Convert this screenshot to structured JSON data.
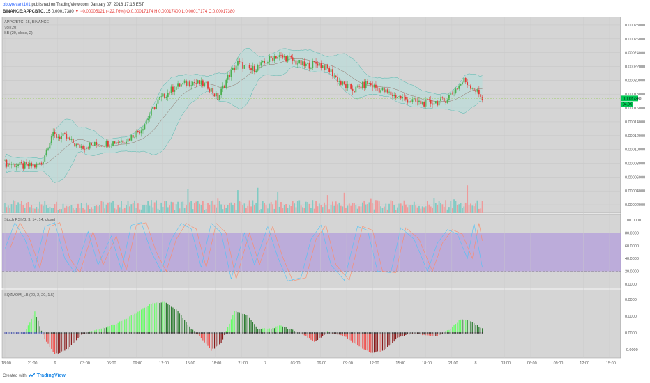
{
  "header": {
    "username": "bboyrevant101",
    "published_text": "published on TradingView.com, January 07, 2018 17:15 EST",
    "symbol": "BINANCE:APPCBTC, 15",
    "price": "0.00017380",
    "change": "−0.00005121 (−22.76%)",
    "ohlc": "O:0.00017174 H:0.00017400 L:0.00017174 C:0.00017380"
  },
  "chart_data": {
    "type": "candlestick",
    "pane_labels": [
      "APPC/BTC, 15, BINANCE",
      "Vol (20)",
      "BB (20, close, 2)",
      "Stoch RSI (3, 3, 14, 14, close)",
      "SQZMOM_LB (20, 2, 20, 1.5)"
    ],
    "main_axis": [
      "0.00028000",
      "0.00026000",
      "0.00024000",
      "0.00022000",
      "0.00020000",
      "0.00018000",
      "0.00016000",
      "0.00014000",
      "0.00012000",
      "0.00010000",
      "0.00008000",
      "0.00006000",
      "0.00004000",
      "0.00002000"
    ],
    "price_label": "0.00017380",
    "volume_label": "94.0K",
    "stoch_axis": [
      "100.0000",
      "80.0000",
      "60.0000",
      "40.0000",
      "20.0000",
      "0.0000"
    ],
    "sqz_axis": [
      "0.0000",
      "0.0000",
      "0.0000",
      "-0.0000"
    ],
    "x_ticks": [
      "18:00",
      "21:00",
      "6",
      "03:00",
      "06:00",
      "09:00",
      "12:00",
      "15:00",
      "18:00",
      "21:00",
      "7",
      "03:00",
      "06:00",
      "09:00",
      "12:00",
      "15:00",
      "18:00",
      "21:00",
      "8",
      "03:00",
      "06:00",
      "09:00",
      "12:00",
      "15:00"
    ],
    "price_anchors": [
      [
        0,
        8e-05
      ],
      [
        12,
        7.6e-05
      ],
      [
        18,
        7.6e-05
      ],
      [
        22,
        8e-05
      ],
      [
        28,
        0.00012
      ],
      [
        36,
        0.000118
      ],
      [
        44,
        0.000104
      ],
      [
        52,
        0.000106
      ],
      [
        64,
        0.00011
      ],
      [
        74,
        0.000115
      ],
      [
        82,
        0.00013
      ],
      [
        92,
        0.00017
      ],
      [
        102,
        0.00019
      ],
      [
        112,
        0.000198
      ],
      [
        122,
        0.000192
      ],
      [
        128,
        0.000174
      ],
      [
        134,
        0.000205
      ],
      [
        140,
        0.000225
      ],
      [
        148,
        0.000215
      ],
      [
        154,
        0.000222
      ],
      [
        162,
        0.000235
      ],
      [
        170,
        0.000232
      ],
      [
        180,
        0.000221
      ],
      [
        188,
        0.000225
      ],
      [
        196,
        0.000213
      ],
      [
        202,
        0.000195
      ],
      [
        210,
        0.000186
      ],
      [
        218,
        0.000196
      ],
      [
        226,
        0.000186
      ],
      [
        234,
        0.000178
      ],
      [
        242,
        0.000172
      ],
      [
        250,
        0.000167
      ],
      [
        256,
        0.000168
      ],
      [
        264,
        0.00017
      ],
      [
        270,
        0.000185
      ],
      [
        276,
        0.0002
      ],
      [
        282,
        0.000188
      ],
      [
        287,
        0.000174
      ]
    ],
    "stoch_k": [
      [
        0,
        55
      ],
      [
        6,
        96
      ],
      [
        12,
        70
      ],
      [
        18,
        25
      ],
      [
        24,
        90
      ],
      [
        30,
        96
      ],
      [
        36,
        40
      ],
      [
        42,
        18
      ],
      [
        50,
        82
      ],
      [
        56,
        30
      ],
      [
        64,
        75
      ],
      [
        70,
        22
      ],
      [
        76,
        92
      ],
      [
        82,
        96
      ],
      [
        88,
        50
      ],
      [
        94,
        20
      ],
      [
        100,
        70
      ],
      [
        106,
        95
      ],
      [
        112,
        86
      ],
      [
        118,
        26
      ],
      [
        124,
        95
      ],
      [
        130,
        80
      ],
      [
        136,
        8
      ],
      [
        144,
        80
      ],
      [
        150,
        30
      ],
      [
        158,
        90
      ],
      [
        164,
        42
      ],
      [
        170,
        5
      ],
      [
        178,
        10
      ],
      [
        184,
        70
      ],
      [
        190,
        92
      ],
      [
        196,
        30
      ],
      [
        204,
        6
      ],
      [
        212,
        90
      ],
      [
        218,
        84
      ],
      [
        224,
        20
      ],
      [
        232,
        18
      ],
      [
        238,
        88
      ],
      [
        246,
        70
      ],
      [
        254,
        20
      ],
      [
        260,
        64
      ],
      [
        266,
        85
      ],
      [
        272,
        78
      ],
      [
        278,
        40
      ],
      [
        282,
        95
      ],
      [
        287,
        26
      ]
    ],
    "stoch_d_lag": 3,
    "sqz_anchors": [
      [
        0,
        0
      ],
      [
        12,
        0
      ],
      [
        18,
        0.5
      ],
      [
        24,
        -0.15
      ],
      [
        30,
        -0.52
      ],
      [
        38,
        -0.38
      ],
      [
        46,
        -0.05
      ],
      [
        56,
        0.08
      ],
      [
        66,
        0.2
      ],
      [
        78,
        0.45
      ],
      [
        88,
        0.7
      ],
      [
        96,
        0.75
      ],
      [
        104,
        0.52
      ],
      [
        112,
        0.1
      ],
      [
        118,
        -0.12
      ],
      [
        124,
        -0.42
      ],
      [
        130,
        -0.25
      ],
      [
        138,
        0.52
      ],
      [
        146,
        0.42
      ],
      [
        152,
        0.1
      ],
      [
        160,
        0.1
      ],
      [
        166,
        0.18
      ],
      [
        172,
        0.08
      ],
      [
        180,
        -0.05
      ],
      [
        186,
        -0.22
      ],
      [
        194,
        0.02
      ],
      [
        204,
        -0.08
      ],
      [
        212,
        -0.3
      ],
      [
        220,
        -0.48
      ],
      [
        228,
        -0.43
      ],
      [
        236,
        -0.12
      ],
      [
        244,
        -0.02
      ],
      [
        252,
        -0.05
      ],
      [
        260,
        -0.08
      ],
      [
        268,
        0.1
      ],
      [
        274,
        0.33
      ],
      [
        280,
        0.28
      ],
      [
        287,
        0.1
      ]
    ],
    "colors": {
      "up": "#26a69a",
      "upbright": "#4caf50",
      "down": "#e53935",
      "bb_fill": "#b2dfdb",
      "stoch_band": "#b39ddb",
      "stoch_k": "#4fc3f7",
      "stoch_d": "#ff8a65",
      "sqz_up": "#66ff66",
      "sqz_up_dim": "#2e7d32",
      "sqz_down": "#ef5350",
      "sqz_down_dim": "#8b1a1a",
      "price_label": "#00c853",
      "pane_bg": "#d5d5d5"
    }
  },
  "footer": {
    "created_with": "Created with",
    "brand": "TradingView"
  }
}
